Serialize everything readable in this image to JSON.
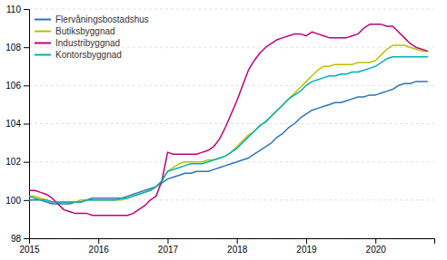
{
  "chart_data": {
    "type": "line",
    "x": [
      2015.0,
      2015.083,
      2015.167,
      2015.25,
      2015.333,
      2015.417,
      2015.5,
      2015.583,
      2015.667,
      2015.75,
      2015.833,
      2015.917,
      2016.0,
      2016.083,
      2016.167,
      2016.25,
      2016.333,
      2016.417,
      2016.5,
      2016.583,
      2016.667,
      2016.75,
      2016.833,
      2016.917,
      2017.0,
      2017.083,
      2017.167,
      2017.25,
      2017.333,
      2017.417,
      2017.5,
      2017.583,
      2017.667,
      2017.75,
      2017.833,
      2017.917,
      2018.0,
      2018.083,
      2018.167,
      2018.25,
      2018.333,
      2018.417,
      2018.5,
      2018.583,
      2018.667,
      2018.75,
      2018.833,
      2018.917,
      2019.0,
      2019.083,
      2019.167,
      2019.25,
      2019.333,
      2019.417,
      2019.5,
      2019.583,
      2019.667,
      2019.75,
      2019.833,
      2019.917,
      2020.0,
      2020.083,
      2020.167,
      2020.25,
      2020.333,
      2020.417,
      2020.5,
      2020.583,
      2020.667,
      2020.75
    ],
    "series": [
      {
        "name": "Flervåningsbostadshus",
        "color": "#2e75b6",
        "values": [
          100.0,
          100.0,
          100.0,
          99.9,
          99.8,
          99.8,
          99.8,
          99.8,
          99.9,
          99.9,
          100.0,
          100.1,
          100.1,
          100.1,
          100.1,
          100.1,
          100.1,
          100.2,
          100.3,
          100.4,
          100.5,
          100.6,
          100.7,
          100.9,
          101.1,
          101.2,
          101.3,
          101.4,
          101.4,
          101.5,
          101.5,
          101.5,
          101.6,
          101.7,
          101.8,
          101.9,
          102.0,
          102.1,
          102.2,
          102.4,
          102.6,
          102.8,
          103.0,
          103.3,
          103.5,
          103.8,
          104.0,
          104.3,
          104.5,
          104.7,
          104.8,
          104.9,
          105.0,
          105.1,
          105.1,
          105.2,
          105.3,
          105.4,
          105.4,
          105.5,
          105.5,
          105.6,
          105.7,
          105.8,
          106.0,
          106.1,
          106.1,
          106.2,
          106.2,
          106.2
        ]
      },
      {
        "name": "Butiksbyggnad",
        "color": "#b8c200",
        "values": [
          100.2,
          100.2,
          100.1,
          100.0,
          99.9,
          99.9,
          99.9,
          99.9,
          99.9,
          100.0,
          100.0,
          100.0,
          100.0,
          100.0,
          100.0,
          100.0,
          100.0,
          100.1,
          100.2,
          100.3,
          100.4,
          100.5,
          100.7,
          101.0,
          101.5,
          101.7,
          101.9,
          102.0,
          102.0,
          102.0,
          102.0,
          102.1,
          102.1,
          102.2,
          102.3,
          102.5,
          102.8,
          103.1,
          103.4,
          103.6,
          103.9,
          104.1,
          104.4,
          104.7,
          105.0,
          105.3,
          105.6,
          105.9,
          106.2,
          106.5,
          106.8,
          107.0,
          107.0,
          107.1,
          107.1,
          107.1,
          107.1,
          107.2,
          107.2,
          107.2,
          107.3,
          107.6,
          107.9,
          108.1,
          108.1,
          108.1,
          108.0,
          107.9,
          107.8,
          107.8
        ]
      },
      {
        "name": "Industribyggnad",
        "color": "#c0007a",
        "values": [
          100.5,
          100.5,
          100.4,
          100.3,
          100.1,
          99.8,
          99.5,
          99.4,
          99.3,
          99.3,
          99.3,
          99.2,
          99.2,
          99.2,
          99.2,
          99.2,
          99.2,
          99.2,
          99.3,
          99.5,
          99.7,
          100.0,
          100.2,
          101.0,
          102.5,
          102.4,
          102.4,
          102.4,
          102.4,
          102.4,
          102.5,
          102.6,
          102.8,
          103.2,
          103.8,
          104.5,
          105.2,
          106.0,
          106.8,
          107.3,
          107.7,
          108.0,
          108.2,
          108.4,
          108.5,
          108.6,
          108.7,
          108.7,
          108.6,
          108.8,
          108.7,
          108.6,
          108.5,
          108.5,
          108.5,
          108.5,
          108.6,
          108.7,
          109.0,
          109.2,
          109.2,
          109.2,
          109.1,
          109.1,
          108.8,
          108.5,
          108.2,
          108.0,
          107.9,
          107.8
        ]
      },
      {
        "name": "Kontorsbyggnad",
        "color": "#00b0b8",
        "values": [
          100.2,
          100.1,
          100.0,
          100.0,
          99.9,
          99.9,
          99.9,
          99.9,
          99.9,
          99.9,
          100.0,
          100.0,
          100.0,
          100.0,
          100.0,
          100.0,
          100.1,
          100.1,
          100.2,
          100.3,
          100.4,
          100.5,
          100.7,
          101.0,
          101.5,
          101.6,
          101.7,
          101.8,
          101.9,
          101.9,
          101.9,
          102.0,
          102.1,
          102.2,
          102.3,
          102.5,
          102.7,
          103.0,
          103.3,
          103.6,
          103.9,
          104.1,
          104.4,
          104.7,
          105.0,
          105.3,
          105.5,
          105.7,
          106.0,
          106.2,
          106.3,
          106.4,
          106.5,
          106.5,
          106.6,
          106.6,
          106.7,
          106.7,
          106.8,
          106.9,
          107.0,
          107.2,
          107.4,
          107.5,
          107.5,
          107.5,
          107.5,
          107.5,
          107.5,
          107.5
        ]
      }
    ],
    "xlim": [
      2015,
      2020.85
    ],
    "ylim": [
      98,
      110
    ],
    "xticks": [
      2015,
      2016,
      2017,
      2018,
      2019,
      2020
    ],
    "yticks": [
      98,
      100,
      102,
      104,
      106,
      108,
      110
    ],
    "grid": true,
    "legend": "upper left"
  }
}
